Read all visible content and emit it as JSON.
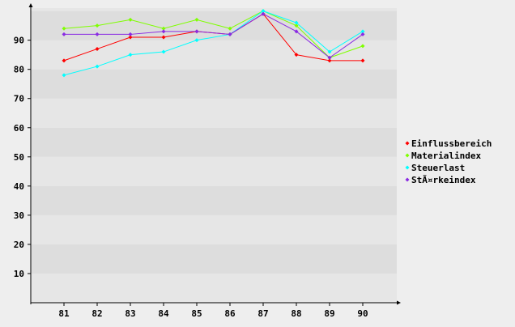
{
  "chart_data": {
    "type": "line",
    "title": "",
    "xlabel": "",
    "ylabel": "",
    "x": [
      81,
      82,
      83,
      84,
      85,
      86,
      87,
      88,
      89,
      90
    ],
    "y_ticks": [
      10,
      20,
      30,
      40,
      50,
      60,
      70,
      80,
      90
    ],
    "ylim": [
      0,
      101
    ],
    "grid": "horizontal alternating bands",
    "legend_position": "right",
    "series": [
      {
        "name": "Einflussbereich",
        "color": "#ff0000",
        "values": [
          83,
          87,
          91,
          91,
          93,
          92,
          99,
          85,
          83,
          83
        ]
      },
      {
        "name": "Materialindex",
        "color": "#7fff00",
        "values": [
          94,
          95,
          97,
          94,
          97,
          94,
          100,
          95,
          84,
          88
        ]
      },
      {
        "name": "Steuerlast",
        "color": "#00ffff",
        "values": [
          78,
          81,
          85,
          86,
          90,
          92,
          100,
          96,
          86,
          93
        ]
      },
      {
        "name": "StÃ¤rkeindex",
        "color": "#8a2be2",
        "values": [
          92,
          92,
          92,
          93,
          93,
          92,
          99,
          93,
          84,
          92
        ]
      }
    ]
  },
  "colors": {
    "background": "#eeeeee",
    "band_light": "#e6e6e6",
    "band_dark": "#dddddd",
    "axis": "#000000"
  }
}
